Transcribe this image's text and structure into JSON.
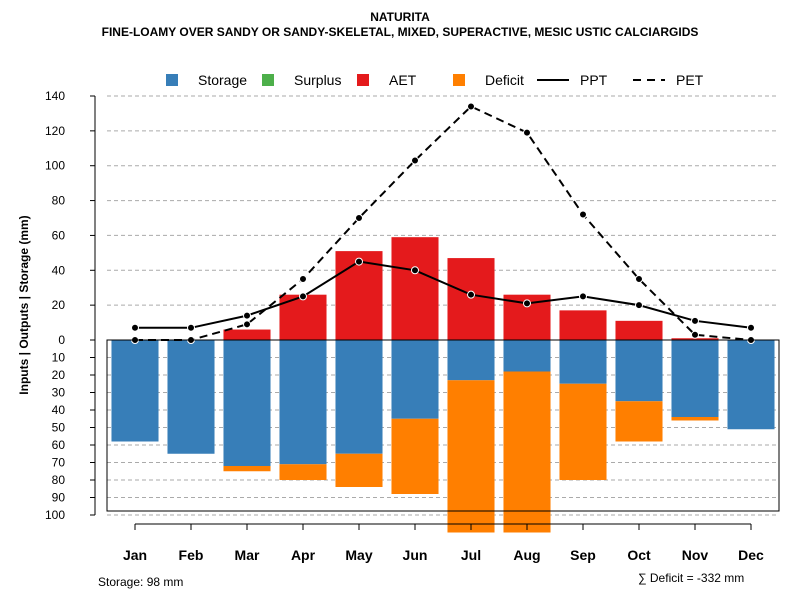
{
  "chart_data": {
    "type": "bar",
    "title": "NATURITA",
    "subtitle": "FINE-LOAMY OVER SANDY OR SANDY-SKELETAL, MIXED, SUPERACTIVE, MESIC USTIC CALCIARGIDS",
    "ylabel": "Inputs | Outputs | Storage    (mm)",
    "categories": [
      "Jan",
      "Feb",
      "Mar",
      "Apr",
      "May",
      "Jun",
      "Jul",
      "Aug",
      "Sep",
      "Oct",
      "Nov",
      "Dec"
    ],
    "ylim_top": [
      0,
      140
    ],
    "ylim_bottom": [
      0,
      100
    ],
    "yticks_top": [
      0,
      20,
      40,
      60,
      80,
      100,
      120,
      140
    ],
    "yticks_bottom": [
      0,
      10,
      20,
      30,
      40,
      50,
      60,
      70,
      80,
      90,
      100
    ],
    "series": [
      {
        "name": "Storage",
        "color": "#377eb8",
        "values": [
          58,
          65,
          72,
          71,
          65,
          45,
          23,
          18,
          25,
          35,
          44,
          51
        ]
      },
      {
        "name": "Surplus",
        "color": "#4daf4a",
        "values": [
          0,
          0,
          0,
          0,
          0,
          0,
          0,
          0,
          0,
          0,
          0,
          0
        ]
      },
      {
        "name": "AET",
        "color": "#e41a1c",
        "values": [
          0,
          0,
          6,
          26,
          51,
          59,
          47,
          26,
          17,
          11,
          1,
          0
        ]
      },
      {
        "name": "Deficit",
        "color": "#ff7f00",
        "values": [
          0,
          0,
          3,
          9,
          19,
          43,
          87,
          92,
          55,
          23,
          2,
          0
        ]
      },
      {
        "name": "PPT",
        "color": "#000000",
        "style": "solid",
        "values": [
          7,
          7,
          14,
          25,
          45,
          40,
          26,
          21,
          25,
          20,
          11,
          7
        ]
      },
      {
        "name": "PET",
        "color": "#000000",
        "style": "dashed",
        "values": [
          0,
          0,
          9,
          35,
          70,
          103,
          134,
          119,
          72,
          35,
          3,
          0
        ]
      }
    ]
  },
  "footer": {
    "storage": "Storage: 98 mm",
    "deficit": "∑ Deficit = -332 mm"
  }
}
